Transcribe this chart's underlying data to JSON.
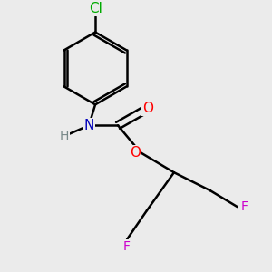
{
  "background_color": "#ebebeb",
  "atom_colors": {
    "F": "#cc00cc",
    "O": "#ff0000",
    "N": "#0000bb",
    "H": "#778888",
    "Cl": "#00aa00",
    "C": "#000000"
  },
  "figsize": [
    3.0,
    3.0
  ],
  "dpi": 100
}
